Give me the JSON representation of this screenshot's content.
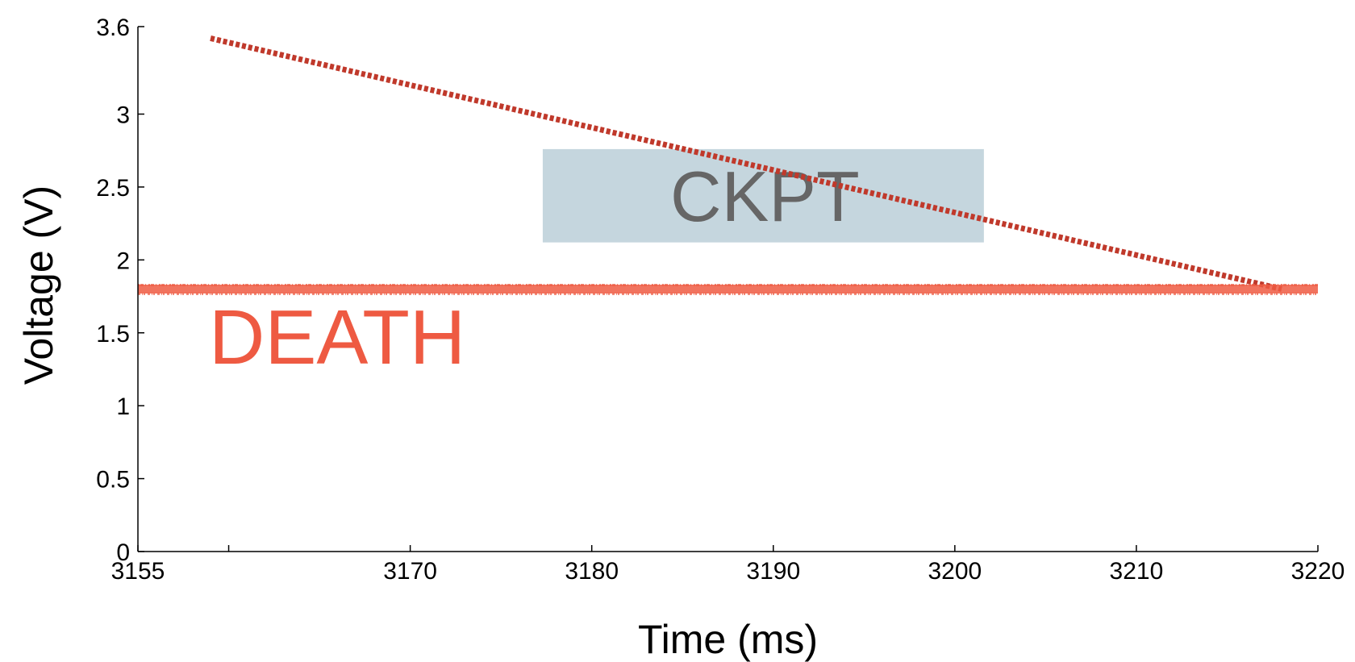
{
  "chart_data": {
    "type": "line",
    "title": "",
    "xlabel": "Time (ms)",
    "ylabel": "Voltage (V)",
    "xlim": [
      3155,
      3220
    ],
    "ylim": [
      0,
      3.6
    ],
    "x_ticks": [
      3155,
      3160,
      3170,
      3180,
      3190,
      3200,
      3210,
      3220
    ],
    "x_tick_labels": [
      "3155",
      "",
      "3170",
      "3180",
      "3190",
      "3200",
      "3210",
      "3220"
    ],
    "y_ticks": [
      0,
      0.5,
      1,
      1.5,
      2,
      2.5,
      3,
      3.6
    ],
    "y_tick_labels": [
      "0",
      "0.5",
      "1",
      "1.5",
      "2",
      "2.5",
      "3",
      "3.6"
    ],
    "grid": false,
    "series": [
      {
        "x": [
          3159,
          3218
        ],
        "values": [
          3.52,
          1.8
        ],
        "color": "#c0392b",
        "style": "dotted"
      },
      {
        "x": [
          3155,
          3220
        ],
        "values": [
          1.8,
          1.8
        ],
        "color": "#ee5a42",
        "style": "thick-noisy"
      }
    ],
    "annotations": [
      {
        "text": "CKPT",
        "x_range": [
          3177.3,
          3201.6
        ],
        "y_range": [
          2.12,
          2.76
        ],
        "box_color": "#c5d6de",
        "text_color": "#666666"
      },
      {
        "text": "DEATH",
        "x": 3159,
        "y": 1.5,
        "color": "#ee5a42"
      }
    ]
  }
}
